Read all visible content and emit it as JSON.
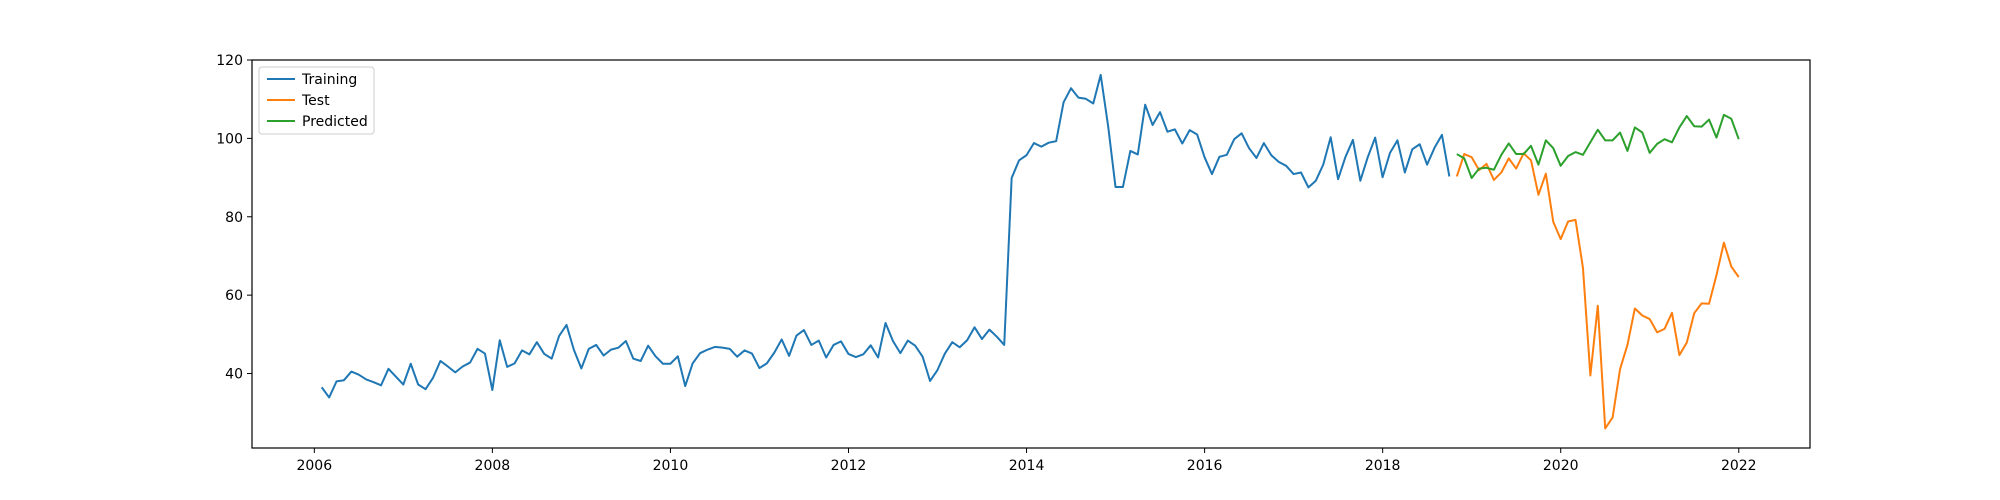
{
  "chart_data": {
    "type": "line",
    "title": "",
    "xlabel": "",
    "ylabel": "",
    "xlim": [
      2005.3,
      2022.8
    ],
    "ylim": [
      21,
      120
    ],
    "x_ticks": [
      2006,
      2008,
      2010,
      2012,
      2014,
      2016,
      2018,
      2020,
      2022
    ],
    "y_ticks": [
      40,
      60,
      80,
      100,
      120
    ],
    "grid": false,
    "legend_position": "upper left",
    "series": [
      {
        "name": "Training",
        "color": "#1f77b4",
        "x_start": 2006.083,
        "x_step": 0.08333,
        "values": [
          36.5,
          33.9,
          38.0,
          38.3,
          40.5,
          39.7,
          38.5,
          37.8,
          37.0,
          41.2,
          39.2,
          37.2,
          42.5,
          37.2,
          36.0,
          38.9,
          43.2,
          41.8,
          40.3,
          41.8,
          42.8,
          46.3,
          45.1,
          35.8,
          48.5,
          41.7,
          42.6,
          45.9,
          44.9,
          48.0,
          45.0,
          43.8,
          49.6,
          52.4,
          46.0,
          41.3,
          46.3,
          47.3,
          44.6,
          46.1,
          46.6,
          48.3,
          43.8,
          43.2,
          47.1,
          44.4,
          42.5,
          42.5,
          44.4,
          36.8,
          42.6,
          45.2,
          46.1,
          46.8,
          46.6,
          46.3,
          44.3,
          45.9,
          45.1,
          41.4,
          42.6,
          45.3,
          48.7,
          44.5,
          49.7,
          51.1,
          47.3,
          48.4,
          44.1,
          47.3,
          48.2,
          45.0,
          44.2,
          44.9,
          47.2,
          44.1,
          52.9,
          48.3,
          45.2,
          48.4,
          47.1,
          44.3,
          38.1,
          40.9,
          45.1,
          48.0,
          46.7,
          48.5,
          51.8,
          48.8,
          51.2,
          49.4,
          47.3,
          89.9,
          94.4,
          95.7,
          98.8,
          97.9,
          98.9,
          99.3,
          109.2,
          112.8,
          110.4,
          110.1,
          108.9,
          116.2,
          103.2,
          87.6,
          87.6,
          96.8,
          95.9,
          108.6,
          103.4,
          106.7,
          101.7,
          102.3,
          98.7,
          102.1,
          101.0,
          95.2,
          90.9,
          95.3,
          95.8,
          99.8,
          101.3,
          97.5,
          95.0,
          98.8,
          95.7,
          94.0,
          93.0,
          90.9,
          91.3,
          87.5,
          89.2,
          93.3,
          100.3,
          89.6,
          95.3,
          99.6,
          89.2,
          95.2,
          100.2,
          90.1,
          96.3,
          99.5,
          91.3,
          97.2,
          98.5,
          93.3,
          97.6,
          100.9,
          90.3
        ]
      },
      {
        "name": "Test",
        "color": "#ff7f0e",
        "x_start": 2018.833,
        "x_step": 0.08333,
        "values": [
          90.3,
          96.0,
          95.2,
          91.9,
          93.5,
          89.4,
          91.3,
          94.9,
          92.3,
          96.2,
          94.4,
          85.6,
          91.0,
          78.7,
          74.3,
          78.8,
          79.2,
          67.0,
          39.5,
          57.3,
          26.0,
          28.8,
          41.1,
          47.3,
          56.6,
          54.8,
          53.9,
          50.5,
          51.4,
          55.5,
          44.7,
          47.9,
          55.4,
          57.9,
          57.8,
          65.1,
          73.4,
          67.3,
          64.6
        ]
      },
      {
        "name": "Predicted",
        "color": "#2ca02c",
        "x_start": 2018.833,
        "x_step": 0.08333,
        "values": [
          96.0,
          94.9,
          89.9,
          92.3,
          92.5,
          92.0,
          95.8,
          98.7,
          96.0,
          96.0,
          98.1,
          93.3,
          99.5,
          97.5,
          93.0,
          95.5,
          96.5,
          95.8,
          99.0,
          102.2,
          99.5,
          99.5,
          101.5,
          96.8,
          102.8,
          101.5,
          96.3,
          98.6,
          99.8,
          99.0,
          102.8,
          105.7,
          103.1,
          103.0,
          104.8,
          100.2,
          106.0,
          105.0,
          99.8
        ]
      }
    ]
  }
}
